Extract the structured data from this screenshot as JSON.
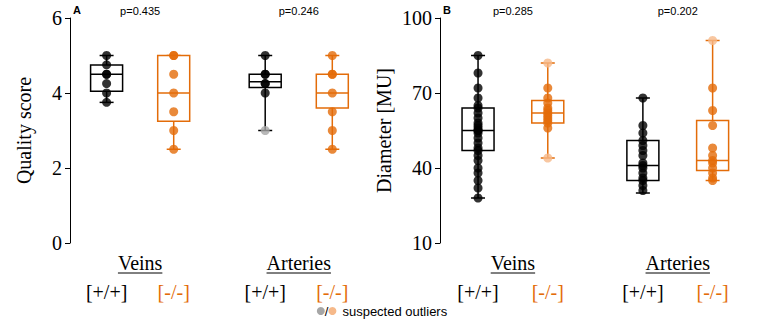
{
  "chart_data": [
    {
      "type": "boxplot",
      "panel": "A",
      "ylabel": "Quality score",
      "ylim": [
        0,
        6
      ],
      "yticks": [
        0,
        2,
        4,
        6
      ],
      "grid": false,
      "groups": [
        "Veins",
        "Arteries"
      ],
      "p_values": [
        "p=0.435",
        "p=0.246"
      ],
      "series": [
        {
          "name": "[+/+]",
          "color": "#000000",
          "outlier_color": "#a6a6a6",
          "boxes": [
            [
              3.75,
              4.05,
              4.5,
              4.75,
              5.0
            ],
            [
              3.0,
              4.15,
              4.3,
              4.5,
              5.0
            ]
          ],
          "points": [
            [
              5.0,
              4.75,
              4.5,
              4.5,
              4.25,
              4.0,
              3.75
            ],
            [
              5.0,
              4.5,
              4.5,
              4.25,
              4.25,
              4.0
            ]
          ],
          "outliers": [
            [],
            [
              3.0
            ]
          ]
        },
        {
          "name": "[-/-]",
          "color": "#e36c09",
          "outlier_color": "#f6b98a",
          "boxes": [
            [
              2.5,
              3.25,
              4.0,
              5.0,
              5.0
            ],
            [
              2.5,
              3.6,
              4.0,
              4.5,
              5.0
            ]
          ],
          "points": [
            [
              5.0,
              5.0,
              4.5,
              4.0,
              3.5,
              3.0,
              2.5
            ],
            [
              5.0,
              4.5,
              4.5,
              4.0,
              3.5,
              3.0,
              2.5
            ]
          ],
          "outliers": [
            [],
            []
          ]
        }
      ]
    },
    {
      "type": "boxplot",
      "panel": "B",
      "ylabel": "Diameter [MU]",
      "ylim": [
        10,
        100
      ],
      "yticks": [
        10,
        40,
        70,
        100
      ],
      "grid": false,
      "groups": [
        "Veins",
        "Arteries"
      ],
      "p_values": [
        "p=0.285",
        "p=0.202"
      ],
      "series": [
        {
          "name": "[+/+]",
          "color": "#000000",
          "outlier_color": "#a6a6a6",
          "boxes": [
            [
              28,
              47,
              55,
              64,
              85
            ],
            [
              30,
              35,
              41,
              51,
              68
            ]
          ],
          "points": [
            [
              85,
              78,
              72,
              68,
              65,
              64,
              62,
              60,
              58,
              57,
              56,
              55,
              55,
              54,
              52,
              50,
              48,
              47,
              45,
              43,
              40,
              38,
              35,
              32,
              28
            ],
            [
              68,
              57,
              54,
              51,
              49,
              47,
              45,
              42,
              41,
              40,
              38,
              36,
              35,
              33,
              31
            ]
          ],
          "outliers": [
            [],
            []
          ]
        },
        {
          "name": "[-/-]",
          "color": "#e36c09",
          "outlier_color": "#f6b98a",
          "boxes": [
            [
              44,
              58,
              62,
              67,
              82
            ],
            [
              35,
              39,
              43,
              59,
              91
            ]
          ],
          "points": [
            [
              72,
              68,
              66,
              64,
              63,
              62,
              61,
              60,
              59,
              58,
              56
            ],
            [
              72,
              63,
              57,
              48,
              45,
              43,
              42,
              40,
              38,
              36,
              35
            ]
          ],
          "outliers": [
            [
              82,
              44
            ],
            [
              91
            ]
          ]
        }
      ]
    }
  ],
  "note": {
    "separator": "/",
    "text": "suspected outliers"
  }
}
